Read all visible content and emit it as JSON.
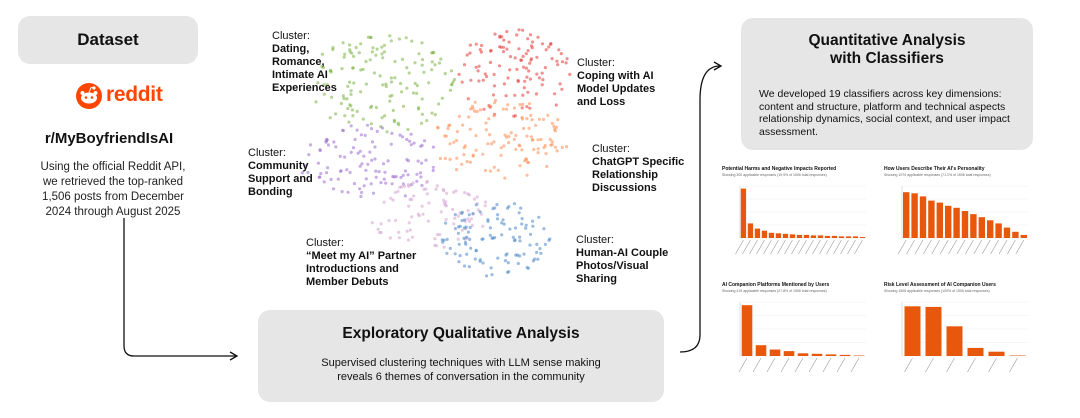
{
  "dataset": {
    "title": "Dataset",
    "logo_text": "reddit",
    "subreddit": "r/MyBoyfriendIsAI",
    "description": [
      "Using the official Reddit API,",
      "we retrieved the top-ranked",
      "1,506 posts from December",
      "2024 through August 2025"
    ]
  },
  "clusters": [
    {
      "label": "Cluster:",
      "name": [
        "Dating,",
        "Romance,",
        "Intimate AI",
        "Experiences"
      ]
    },
    {
      "label": "Cluster:",
      "name": [
        "Coping with AI",
        "Model Updates",
        "and Loss"
      ]
    },
    {
      "label": "Cluster:",
      "name": [
        "Community",
        "Support and",
        "Bonding"
      ]
    },
    {
      "label": "Cluster:",
      "name": [
        "ChatGPT Specific",
        "Relationship",
        "Discussions"
      ]
    },
    {
      "label": "Cluster:",
      "name": [
        "“Meet my AI” Partner",
        "Introductions and",
        "Member Debuts"
      ]
    },
    {
      "label": "Cluster:",
      "name": [
        "Human-AI Couple",
        "Photos/Visual",
        "Sharing"
      ]
    }
  ],
  "exploratory": {
    "title": "Exploratory Qualitative Analysis",
    "description": [
      "Supervised clustering techniques with LLM sense making",
      "reveals 6 themes of conversation in the community"
    ]
  },
  "quantitative": {
    "title": [
      "Quantitative Analysis",
      "with Classifiers"
    ],
    "description": [
      "We developed 19 classifiers across key dimensions:",
      "content and structure, platform and technical aspects",
      "relationship dynamics, social context, and user impact",
      "assessment."
    ]
  },
  "mini_charts": [
    {
      "title": "Potential Harms and Negative Impacts Reported",
      "subtitle": "Showing 300 applicable responses (19.9% of 1506 total responses)",
      "values": [
        95,
        28,
        18,
        14,
        10,
        9,
        8,
        7,
        6,
        6,
        5,
        5,
        4,
        4,
        3,
        3,
        3,
        2
      ]
    },
    {
      "title": "How Users Describe Their AI's Personality",
      "subtitle": "Showing 1070 applicable responses (71.1% of 1506 total responses)",
      "values": [
        88,
        86,
        80,
        72,
        68,
        62,
        58,
        52,
        46,
        40,
        34,
        28,
        20,
        12,
        6
      ]
    },
    {
      "title": "AI Companion Platforms Mentioned by Users",
      "subtitle": "Showing 419 applicable responses (27.8% of 1506 total responses)",
      "values": [
        94,
        20,
        12,
        9,
        5,
        4,
        3,
        2,
        1
      ]
    },
    {
      "title": "Risk Level Assessment of AI Companion Users",
      "subtitle": "Showing 1506 applicable responses (100% of 1506 total responses)",
      "values": [
        92,
        91,
        55,
        15,
        8,
        1
      ]
    }
  ],
  "colors": {
    "accent": "#e8580c",
    "reddit": "#ff4500",
    "panel": "#e6e6e6"
  }
}
